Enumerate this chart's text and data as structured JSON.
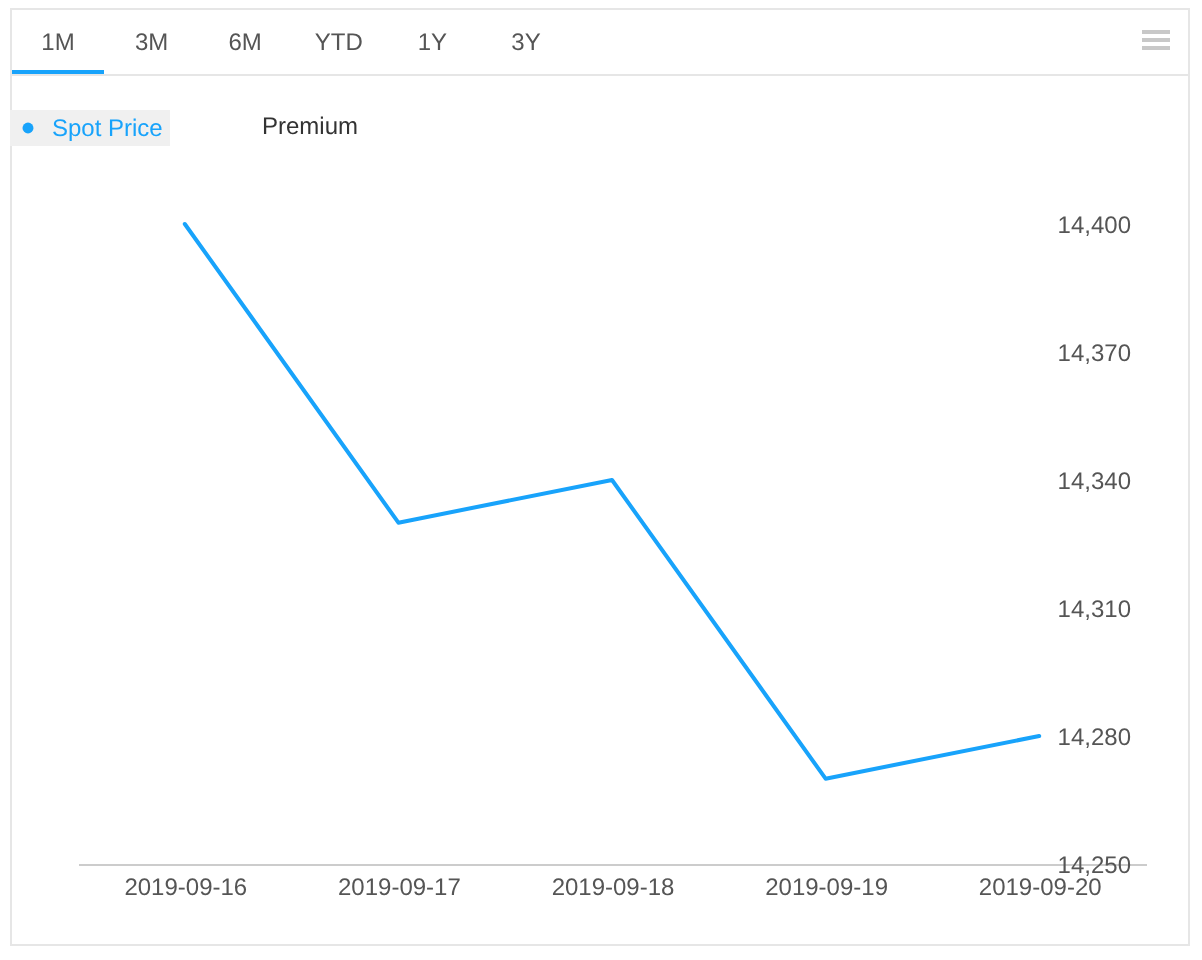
{
  "chart_data": {
    "type": "line",
    "categories": [
      "2019-09-16",
      "2019-09-17",
      "2019-09-18",
      "2019-09-19",
      "2019-09-20"
    ],
    "series": [
      {
        "name": "Spot Price",
        "color": "#18a3fb",
        "values": [
          14400,
          14330,
          14340,
          14270,
          14280
        ]
      }
    ],
    "ylim": [
      14250,
      14400
    ],
    "yticks": [
      {
        "value": 14250,
        "label": "14,250"
      },
      {
        "value": 14280,
        "label": "14,280"
      },
      {
        "value": 14310,
        "label": "14,310"
      },
      {
        "value": 14340,
        "label": "14,340"
      },
      {
        "value": 14370,
        "label": "14,370"
      },
      {
        "value": 14400,
        "label": "14,400"
      }
    ],
    "grid": false,
    "legend": "top left",
    "marker": "none",
    "annotations": [
      "1M",
      "3M",
      "6M",
      "YTD",
      "1Y",
      "3Y",
      "Premium"
    ]
  }
}
